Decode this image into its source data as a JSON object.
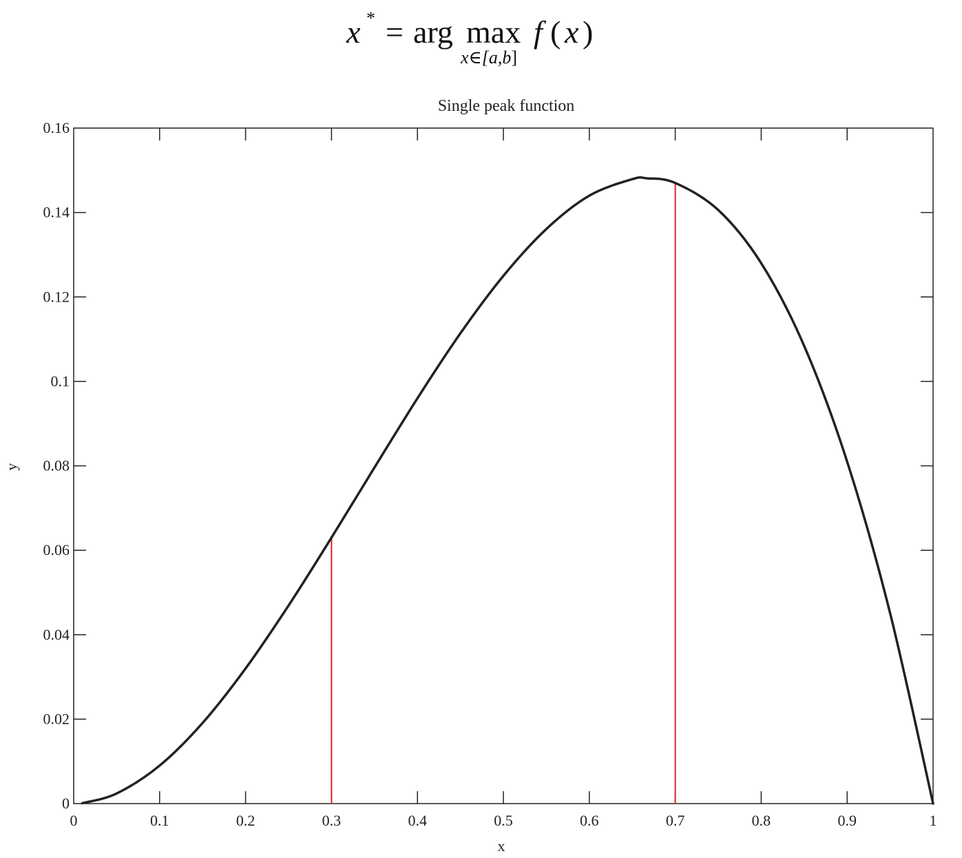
{
  "formula": {
    "lhs_var": "x",
    "lhs_sup": "*",
    "equals": "=",
    "op_arg": "arg",
    "op_max": "max",
    "sub_prefix": "x∈[",
    "sub_a": "a",
    "sub_comma": ",",
    "sub_b": "b",
    "sub_suffix": "]",
    "func_name": "f",
    "func_open": "(",
    "func_var": "x",
    "func_close": ")"
  },
  "chart_data": {
    "type": "line",
    "title": "Single peak function",
    "xlabel": "x",
    "ylabel": "y",
    "xlim": [
      0,
      1
    ],
    "ylim": [
      0,
      0.16
    ],
    "xticks": [
      0,
      0.1,
      0.2,
      0.3,
      0.4,
      0.5,
      0.6,
      0.7,
      0.8,
      0.9,
      1
    ],
    "xtick_labels": [
      "0",
      "0.1",
      "0.2",
      "0.3",
      "0.4",
      "0.5",
      "0.6",
      "0.7",
      "0.8",
      "0.9",
      "1"
    ],
    "yticks": [
      0,
      0.02,
      0.04,
      0.06,
      0.08,
      0.1,
      0.12,
      0.14,
      0.16
    ],
    "ytick_labels": [
      "0",
      "0.02",
      "0.04",
      "0.06",
      "0.08",
      "0.1",
      "0.12",
      "0.14",
      "0.16"
    ],
    "grid": false,
    "series": [
      {
        "color": "#222222",
        "x": [
          0.01,
          0.05,
          0.1,
          0.15,
          0.2,
          0.25,
          0.3,
          0.35,
          0.4,
          0.45,
          0.5,
          0.55,
          0.6,
          0.65,
          0.667,
          0.7,
          0.75,
          0.8,
          0.85,
          0.9,
          0.95,
          1.0
        ],
        "y": [
          0.0001,
          0.0024,
          0.009,
          0.0191,
          0.032,
          0.0469,
          0.063,
          0.0796,
          0.096,
          0.1114,
          0.125,
          0.1361,
          0.144,
          0.1479,
          0.1481,
          0.147,
          0.1406,
          0.128,
          0.1084,
          0.081,
          0.0451,
          0.0
        ]
      }
    ],
    "vlines": [
      {
        "x": 0.3,
        "y": 0.063,
        "color": "#dd2222"
      },
      {
        "x": 0.7,
        "y": 0.147,
        "color": "#dd2222"
      }
    ]
  }
}
